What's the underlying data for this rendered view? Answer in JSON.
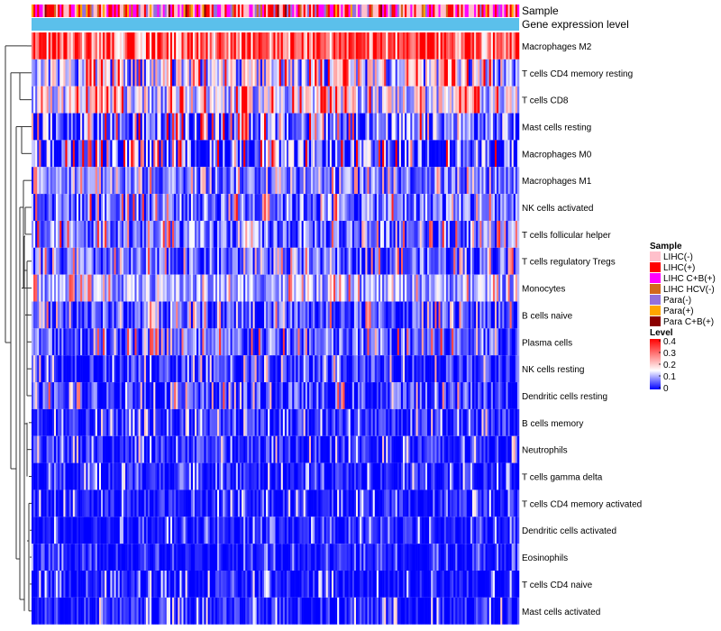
{
  "chart_data": {
    "type": "heatmap",
    "annotation_tracks": [
      "Sample",
      "Gene expression level"
    ],
    "rows": [
      {
        "label": "Macrophages M2",
        "mean": 0.3,
        "spread": 0.16
      },
      {
        "label": "T cells CD4 memory resting",
        "mean": 0.13,
        "spread": 0.13
      },
      {
        "label": "T cells CD8",
        "mean": 0.15,
        "spread": 0.12
      },
      {
        "label": "Mast cells resting",
        "mean": 0.06,
        "spread": 0.12
      },
      {
        "label": "Macrophages M0",
        "mean": 0.05,
        "spread": 0.13
      },
      {
        "label": "Macrophages M1",
        "mean": 0.07,
        "spread": 0.07
      },
      {
        "label": "NK cells activated",
        "mean": 0.07,
        "spread": 0.09
      },
      {
        "label": "T cells follicular helper",
        "mean": 0.06,
        "spread": 0.09
      },
      {
        "label": "T cells regulatory  Tregs",
        "mean": 0.05,
        "spread": 0.08
      },
      {
        "label": "Monocytes",
        "mean": 0.1,
        "spread": 0.07
      },
      {
        "label": "B cells naive",
        "mean": 0.04,
        "spread": 0.08
      },
      {
        "label": "Plasma cells",
        "mean": 0.05,
        "spread": 0.09
      },
      {
        "label": "NK cells resting",
        "mean": 0.02,
        "spread": 0.07
      },
      {
        "label": "Dendritic cells resting",
        "mean": 0.02,
        "spread": 0.09
      },
      {
        "label": "B cells memory",
        "mean": 0.02,
        "spread": 0.06
      },
      {
        "label": "Neutrophils",
        "mean": 0.02,
        "spread": 0.06
      },
      {
        "label": "T cells gamma delta",
        "mean": 0.01,
        "spread": 0.05
      },
      {
        "label": "T cells CD4 memory activated",
        "mean": 0.01,
        "spread": 0.05
      },
      {
        "label": "Dendritic cells activated",
        "mean": 0.01,
        "spread": 0.04
      },
      {
        "label": "Eosinophils",
        "mean": 0.005,
        "spread": 0.03
      },
      {
        "label": "T cells CD4 naive",
        "mean": 0.005,
        "spread": 0.05
      },
      {
        "label": "Mast cells activated",
        "mean": 0.01,
        "spread": 0.06
      }
    ],
    "color_scale": {
      "title": "Level",
      "min": 0,
      "max": 0.4,
      "tick_labels": [
        "0.4",
        "0.3",
        "0.2",
        "0.1",
        "0"
      ],
      "tick_values": [
        0.4,
        0.3,
        0.2,
        0.1,
        0
      ],
      "low_color": "#0000ff",
      "mid_color": "#ffffff",
      "high_color": "#ff0000",
      "mid_value": 0.15
    },
    "sample_legend": {
      "title": "Sample",
      "entries": [
        {
          "label": "LIHC(-)",
          "color": "#ffc0cb",
          "share": 0.3
        },
        {
          "label": "LIHC(+)",
          "color": "#ff0000",
          "share": 0.25
        },
        {
          "label": "LIHC C+B(+)",
          "color": "#ff00ff",
          "share": 0.2
        },
        {
          "label": "LIHC HCV(-)",
          "color": "#d2691e",
          "share": 0.06
        },
        {
          "label": "Para(-)",
          "color": "#9370db",
          "share": 0.1
        },
        {
          "label": "Para(+)",
          "color": "#ffa500",
          "share": 0.06
        },
        {
          "label": "Para C+B(+)",
          "color": "#8b0000",
          "share": 0.03
        }
      ]
    },
    "gene_expression_track_color": "#5bc0eb",
    "n_samples": 260,
    "legend_position": "right"
  }
}
